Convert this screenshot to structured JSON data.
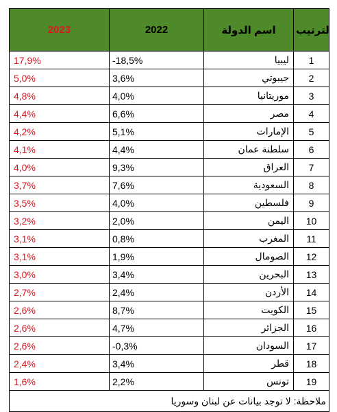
{
  "headers": {
    "year_2023": "2023",
    "year_2022": "2022",
    "country": "اسم الدولة",
    "rank": "الترتيب"
  },
  "rows": [
    {
      "rank": "1",
      "country": "ليبيا",
      "v2022": "-18,5%",
      "v2023": "17,9%"
    },
    {
      "rank": "2",
      "country": "جيبوتي",
      "v2022": "3,6%",
      "v2023": "5,0%"
    },
    {
      "rank": "3",
      "country": "موريتانيا",
      "v2022": "4,0%",
      "v2023": "4,8%"
    },
    {
      "rank": "4",
      "country": "مصر",
      "v2022": "6,6%",
      "v2023": "4,4%"
    },
    {
      "rank": "5",
      "country": "الإمارات",
      "v2022": "5,1%",
      "v2023": "4,2%"
    },
    {
      "rank": "6",
      "country": "سلطنة عمان",
      "v2022": "4,4%",
      "v2023": "4,1%"
    },
    {
      "rank": "7",
      "country": "العراق",
      "v2022": "9,3%",
      "v2023": "4,0%"
    },
    {
      "rank": "8",
      "country": "السعودية",
      "v2022": "7,6%",
      "v2023": "3,7%"
    },
    {
      "rank": "9",
      "country": "فلسطين",
      "v2022": "4,0%",
      "v2023": "3,5%"
    },
    {
      "rank": "10",
      "country": "اليمن",
      "v2022": "2,0%",
      "v2023": "3,2%"
    },
    {
      "rank": "11",
      "country": "المغرب",
      "v2022": "0,8%",
      "v2023": "3,1%"
    },
    {
      "rank": "12",
      "country": "الصومال",
      "v2022": "1,9%",
      "v2023": "3,1%"
    },
    {
      "rank": "13",
      "country": "البحرين",
      "v2022": "3,4%",
      "v2023": "3,0%"
    },
    {
      "rank": "14",
      "country": "الأردن",
      "v2022": "2,4%",
      "v2023": "2,7%"
    },
    {
      "rank": "15",
      "country": "الكويت",
      "v2022": "8,7%",
      "v2023": "2,6%"
    },
    {
      "rank": "16",
      "country": "الجزائر",
      "v2022": "4,7%",
      "v2023": "2,6%"
    },
    {
      "rank": "17",
      "country": "السودان",
      "v2022": "-0,3%",
      "v2023": "2,6%"
    },
    {
      "rank": "18",
      "country": "قطر",
      "v2022": "3,4%",
      "v2023": "2,4%"
    },
    {
      "rank": "19",
      "country": "تونس",
      "v2022": "2,2%",
      "v2023": "1,6%"
    }
  ],
  "note": "ملاحظة: لا توجد بيانات عن لبنان وسوريا",
  "colors": {
    "header_bg": "#4f8a2a",
    "accent_red": "#e0141e"
  }
}
